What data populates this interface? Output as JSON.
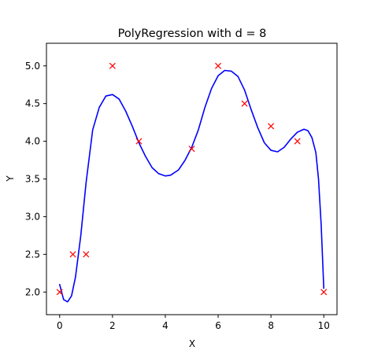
{
  "chart_data": {
    "type": "scatter",
    "title": "PolyRegression with d = 8",
    "xlabel": "X",
    "ylabel": "Y",
    "xlim": [
      -0.5,
      10.5
    ],
    "ylim": [
      1.7,
      5.3
    ],
    "grid": false,
    "x_ticks": [
      0,
      2,
      4,
      6,
      8,
      10
    ],
    "x_tick_labels": [
      "0",
      "2",
      "4",
      "6",
      "8",
      "10"
    ],
    "y_ticks": [
      2.0,
      2.5,
      3.0,
      3.5,
      4.0,
      4.5,
      5.0
    ],
    "y_tick_labels": [
      "2.0",
      "2.5",
      "3.0",
      "3.5",
      "4.0",
      "4.5",
      "5.0"
    ],
    "colors": {
      "points": "#ff0000",
      "curve": "#0000ff",
      "axes": "#000000"
    },
    "series": [
      {
        "type": "scatter",
        "marker": "x",
        "x": [
          0,
          0.5,
          1,
          2,
          3,
          5,
          6,
          7,
          8,
          9,
          10
        ],
        "y": [
          2.0,
          2.5,
          2.5,
          5.0,
          4.0,
          3.9,
          5.0,
          4.5,
          4.2,
          4.0,
          2.0
        ]
      },
      {
        "type": "line",
        "x": [
          0,
          0.15,
          0.3,
          0.45,
          0.6,
          0.8,
          1.0,
          1.25,
          1.5,
          1.75,
          2.0,
          2.25,
          2.5,
          2.75,
          3.0,
          3.25,
          3.5,
          3.75,
          4.0,
          4.2,
          4.5,
          4.75,
          5.0,
          5.25,
          5.5,
          5.75,
          6.0,
          6.25,
          6.5,
          6.75,
          7.0,
          7.25,
          7.5,
          7.75,
          8.0,
          8.25,
          8.5,
          8.75,
          9.0,
          9.25,
          9.4,
          9.55,
          9.7,
          9.8,
          9.9,
          10.0
        ],
        "y": [
          2.1,
          1.9,
          1.87,
          1.95,
          2.2,
          2.75,
          3.45,
          4.15,
          4.45,
          4.6,
          4.62,
          4.56,
          4.4,
          4.2,
          3.98,
          3.8,
          3.65,
          3.57,
          3.54,
          3.55,
          3.62,
          3.75,
          3.92,
          4.15,
          4.45,
          4.7,
          4.87,
          4.94,
          4.93,
          4.86,
          4.68,
          4.42,
          4.18,
          3.98,
          3.88,
          3.86,
          3.92,
          4.03,
          4.12,
          4.16,
          4.14,
          4.05,
          3.85,
          3.5,
          2.9,
          2.05
        ]
      }
    ]
  }
}
